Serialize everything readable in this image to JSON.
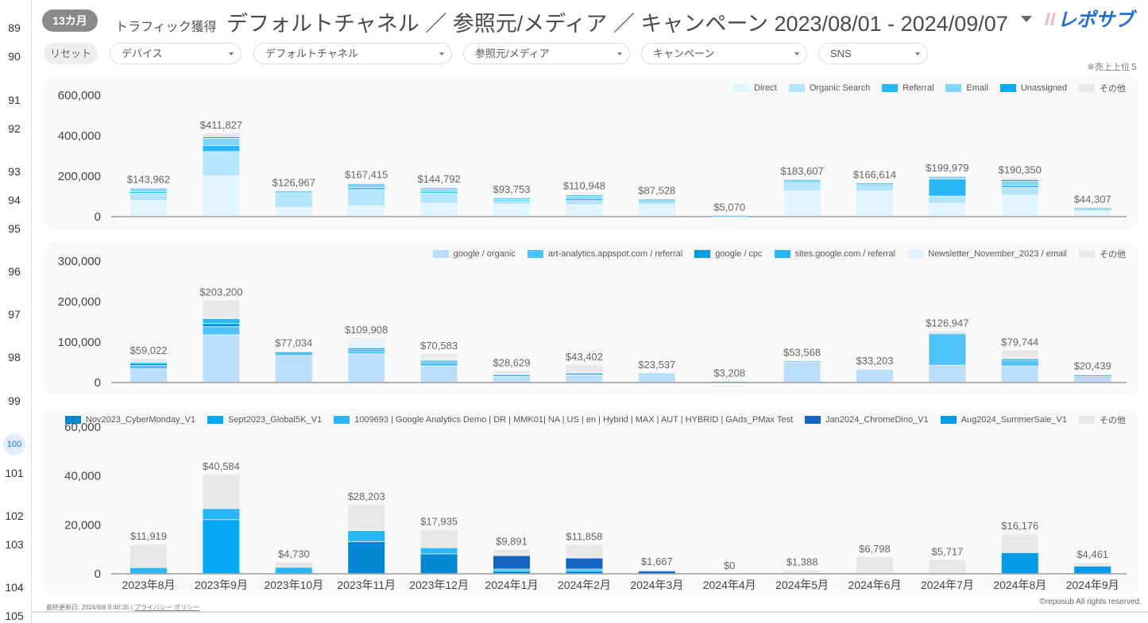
{
  "gutter": {
    "rows": [
      {
        "n": "89",
        "y": 35
      },
      {
        "n": "90",
        "y": 71
      },
      {
        "n": "91",
        "y": 126
      },
      {
        "n": "92",
        "y": 162
      },
      {
        "n": "93",
        "y": 216
      },
      {
        "n": "94",
        "y": 252
      },
      {
        "n": "95",
        "y": 288
      },
      {
        "n": "96",
        "y": 342
      },
      {
        "n": "97",
        "y": 396
      },
      {
        "n": "98",
        "y": 450
      },
      {
        "n": "99",
        "y": 505
      },
      {
        "n": "100",
        "y": 560,
        "selected": true
      },
      {
        "n": "101",
        "y": 596
      },
      {
        "n": "102",
        "y": 650
      },
      {
        "n": "103",
        "y": 686
      },
      {
        "n": "104",
        "y": 740
      },
      {
        "n": "105",
        "y": 776
      }
    ]
  },
  "header": {
    "badge": "13カ月",
    "subtitle": "トラフィック獲得",
    "title": "デフォルトチャネル ／ 参照元/メディア ／ キャンペーン 2023/08/01 - 2024/09/07",
    "logo_text": "レポサブ"
  },
  "filters": {
    "reset": "リセット",
    "dropdowns": [
      "デバイス",
      "デフォルトチャネル",
      "参照元/メディア",
      "キャンペーン",
      "SNS"
    ],
    "note": "※売上上位５"
  },
  "footer": {
    "updated": "最終更新日: 2024/9/8 8:46:35",
    "separator": "|",
    "privacy": "プライバシー ポリシー",
    "copyright": "©reposub All rights reserved."
  },
  "chart_data": [
    {
      "type": "bar",
      "stacked": true,
      "grouping": "デフォルトチャネル",
      "ylim": [
        0,
        600000
      ],
      "yticks": [
        0,
        200000,
        400000,
        600000
      ],
      "legend": "top-right",
      "value_prefix": "$",
      "categories": [
        "2023年8月",
        "2023年9月",
        "2023年10月",
        "2023年11月",
        "2023年12月",
        "2024年1月",
        "2024年2月",
        "2024年3月",
        "2024年4月",
        "2024年5月",
        "2024年6月",
        "2024年7月",
        "2024年8月",
        "2024年9月"
      ],
      "totals": [
        143962,
        411827,
        126967,
        167415,
        144792,
        93753,
        110948,
        87528,
        5070,
        183607,
        166614,
        199979,
        190350,
        44307
      ],
      "series": [
        {
          "name": "Direct",
          "color": "#e1f5fe",
          "values": [
            78000,
            200000,
            45000,
            52000,
            65000,
            60000,
            58000,
            58000,
            1000,
            125000,
            125000,
            65000,
            105000,
            28000
          ]
        },
        {
          "name": "Organic Search",
          "color": "#b3e5fc",
          "values": [
            36000,
            120000,
            65000,
            80000,
            50000,
            18000,
            20000,
            18000,
            2000,
            50000,
            30000,
            35000,
            38000,
            6000
          ]
        },
        {
          "name": "Referral",
          "color": "#29b6f6",
          "values": [
            8000,
            30000,
            5000,
            10000,
            8000,
            4000,
            10000,
            3000,
            500,
            2000,
            3000,
            85000,
            10000,
            2000
          ]
        },
        {
          "name": "Email",
          "color": "#81d4fa",
          "values": [
            12000,
            35000,
            6000,
            15000,
            12000,
            6000,
            12000,
            4000,
            1000,
            4000,
            5000,
            6000,
            20000,
            6000
          ]
        },
        {
          "name": "Unassigned",
          "color": "#03a9f4",
          "values": [
            4000,
            8000,
            3000,
            4000,
            5000,
            3000,
            6000,
            3000,
            300,
            1000,
            1000,
            4000,
            8000,
            1000
          ]
        },
        {
          "name": "その他",
          "color": "#e8e8e8",
          "values": [
            5962,
            18827,
            2967,
            6415,
            4792,
            2753,
            4948,
            1528,
            270,
            1607,
            2614,
            4979,
            9350,
            1307
          ]
        }
      ]
    },
    {
      "type": "bar",
      "stacked": true,
      "grouping": "参照元/メディア",
      "ylim": [
        0,
        300000
      ],
      "yticks": [
        0,
        100000,
        200000,
        300000
      ],
      "legend": "top-right",
      "value_prefix": "$",
      "categories": [
        "2023年8月",
        "2023年9月",
        "2023年10月",
        "2023年11月",
        "2023年12月",
        "2024年1月",
        "2024年2月",
        "2024年3月",
        "2024年4月",
        "2024年5月",
        "2024年6月",
        "2024年7月",
        "2024年8月",
        "2024年9月"
      ],
      "totals": [
        59022,
        203200,
        77034,
        109908,
        70583,
        28629,
        43402,
        23537,
        3208,
        53568,
        33203,
        126947,
        79744,
        20439
      ],
      "series": [
        {
          "name": "google / organic",
          "color": "#bbdefb",
          "values": [
            33000,
            117000,
            66000,
            70000,
            40000,
            14000,
            18000,
            20000,
            2500,
            50000,
            28000,
            42000,
            40000,
            12000
          ]
        },
        {
          "name": "art-analytics.appspot.com / referral",
          "color": "#4fc3f7",
          "values": [
            8000,
            20000,
            7000,
            6000,
            8000,
            3000,
            3000,
            2000,
            300,
            2000,
            2000,
            75000,
            14000,
            2000
          ]
        },
        {
          "name": "google / cpc",
          "color": "#039be5",
          "values": [
            6000,
            8000,
            1000,
            4000,
            2000,
            500,
            500,
            0,
            0,
            0,
            0,
            1500,
            3000,
            3000
          ]
        },
        {
          "name": "sites.google.com / referral",
          "color": "#29b6f6",
          "values": [
            3000,
            12000,
            1000,
            5000,
            4000,
            1000,
            1000,
            500,
            100,
            500,
            500,
            2000,
            2000,
            1000
          ]
        },
        {
          "name": "Newsletter_November_2023 / email",
          "color": "#e3f2fd",
          "values": [
            1000,
            2000,
            1000,
            20000,
            6000,
            2000,
            2000,
            500,
            100,
            500,
            500,
            1000,
            1000,
            500
          ]
        },
        {
          "name": "その他",
          "color": "#e8e8e8",
          "values": [
            8022,
            44200,
            1034,
            4908,
            10583,
            8129,
            18902,
            537,
            208,
            568,
            2203,
            5447,
            19744,
            1939
          ]
        }
      ]
    },
    {
      "type": "bar",
      "stacked": true,
      "grouping": "キャンペーン",
      "ylim": [
        0,
        60000
      ],
      "yticks": [
        0,
        20000,
        40000,
        60000
      ],
      "legend": "top-right",
      "value_prefix": "$",
      "categories": [
        "2023年8月",
        "2023年9月",
        "2023年10月",
        "2023年11月",
        "2023年12月",
        "2024年1月",
        "2024年2月",
        "2024年3月",
        "2024年4月",
        "2024年5月",
        "2024年6月",
        "2024年7月",
        "2024年8月",
        "2024年9月"
      ],
      "totals": [
        11919,
        40584,
        4730,
        28203,
        17935,
        9891,
        11858,
        1667,
        0,
        1388,
        6798,
        5717,
        16176,
        4461
      ],
      "series": [
        {
          "name": "Nov2023_CyberMonday_V1",
          "color": "#0288d1",
          "values": [
            0,
            0,
            0,
            13000,
            8000,
            1000,
            1000,
            0,
            0,
            0,
            0,
            0,
            0,
            0
          ]
        },
        {
          "name": "Sept2023_Global5K_V1",
          "color": "#03a9f4",
          "values": [
            0,
            22000,
            0,
            0,
            0,
            0,
            0,
            0,
            0,
            0,
            0,
            0,
            0,
            0
          ]
        },
        {
          "name": "1009693 | Google Analytics Demo | DR | MMK01| NA | US | en | Hybrid | MAX | AUT | HYBRID | GAds_PMax Test",
          "color": "#29b6f6",
          "values": [
            2400,
            4500,
            2500,
            4500,
            2500,
            800,
            800,
            0,
            0,
            0,
            0,
            0,
            0,
            0
          ]
        },
        {
          "name": "Jan2024_ChromeDino_V1",
          "color": "#1565c0",
          "values": [
            0,
            0,
            0,
            0,
            0,
            5500,
            4500,
            1000,
            0,
            0,
            0,
            0,
            0,
            0
          ]
        },
        {
          "name": "Aug2024_SummerSale_V1",
          "color": "#039be5",
          "values": [
            0,
            0,
            0,
            0,
            0,
            0,
            0,
            0,
            0,
            0,
            0,
            0,
            8500,
            3000
          ]
        },
        {
          "name": "その他",
          "color": "#e8e8e8",
          "values": [
            9519,
            14084,
            2230,
            10703,
            7435,
            2591,
            5558,
            667,
            0,
            1388,
            6798,
            5717,
            7676,
            1461
          ]
        }
      ]
    }
  ]
}
